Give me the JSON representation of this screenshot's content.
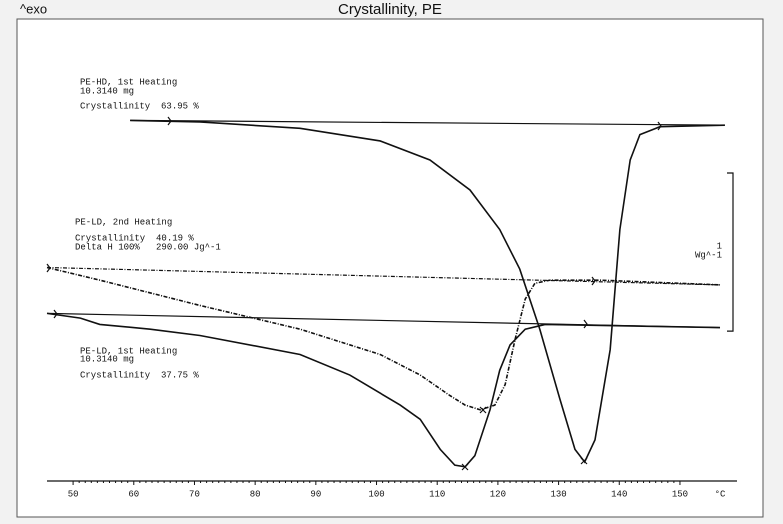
{
  "chart_data": {
    "type": "line",
    "title": "Crystallinity, PE",
    "corner_label": "^exo",
    "x_unit": "°C",
    "xlim": [
      45.7,
      159.4
    ],
    "xticks": [
      50,
      60,
      70,
      80,
      90,
      100,
      110,
      120,
      130,
      140,
      150
    ],
    "ylim": [
      0,
      2.82
    ],
    "scale_bar": {
      "value": 1,
      "label": "1",
      "unit": "Wg^-1"
    },
    "annotations": [
      {
        "lines": [
          "PE-HD, 1st Heating",
          "10.3140 mg",
          "Crystallinity  63.95 %"
        ]
      },
      {
        "lines": [
          "PE-LD, 2nd Heating",
          "Crystallinity  40.19 %",
          "Delta H 100%   290.00 Jg^-1"
        ]
      },
      {
        "lines": [
          "PE-LD, 1st Heating",
          "10.3140 mg",
          "Crystallinity  37.75 %"
        ]
      }
    ],
    "series": [
      {
        "color": "#111111",
        "style": "solid",
        "x": [
          59.4,
          70.9,
          87.4,
          100.6,
          108.8,
          115.4,
          120.3,
          123.6,
          126.9,
          130.2,
          132.7,
          134.3,
          136.0,
          138.5,
          140.1,
          141.8,
          143.4,
          146.7,
          157.4
        ],
        "values": [
          2.28,
          2.27,
          2.23,
          2.15,
          2.03,
          1.84,
          1.59,
          1.34,
          0.96,
          0.52,
          0.2,
          0.12,
          0.26,
          0.83,
          1.59,
          2.03,
          2.19,
          2.24,
          2.25
        ]
      },
      {
        "color": "#111111",
        "style": "solid",
        "x": [
          59.4,
          157.4
        ],
        "values": [
          2.28,
          2.25
        ]
      },
      {
        "color": "#111111",
        "style": "dashdot",
        "x": [
          45.7,
          54.4,
          70.9,
          87.4,
          100.6,
          107.2,
          112.1,
          114.6,
          117.1,
          119.5,
          121.2,
          122.8,
          124.5,
          126.1,
          128.6,
          136.8,
          156.6
        ],
        "values": [
          1.35,
          1.27,
          1.11,
          0.96,
          0.8,
          0.67,
          0.54,
          0.48,
          0.45,
          0.48,
          0.61,
          0.89,
          1.15,
          1.25,
          1.27,
          1.27,
          1.24
        ]
      },
      {
        "color": "#111111",
        "style": "dashdot",
        "x": [
          45.7,
          156.6
        ],
        "values": [
          1.35,
          1.24
        ]
      },
      {
        "color": "#111111",
        "style": "solid",
        "x": [
          45.7,
          51.2,
          54.4,
          62.7,
          70.9,
          87.4,
          95.6,
          103.9,
          107.2,
          110.5,
          112.9,
          114.6,
          116.2,
          118.7,
          120.3,
          122.0,
          124.5,
          127.8,
          156.6
        ],
        "values": [
          1.06,
          1.03,
          0.99,
          0.96,
          0.92,
          0.8,
          0.67,
          0.48,
          0.39,
          0.2,
          0.1,
          0.09,
          0.16,
          0.45,
          0.7,
          0.86,
          0.96,
          0.99,
          0.97
        ]
      },
      {
        "color": "#111111",
        "style": "solid",
        "x": [
          45.7,
          156.6
        ],
        "values": [
          1.06,
          0.97
        ]
      }
    ]
  }
}
